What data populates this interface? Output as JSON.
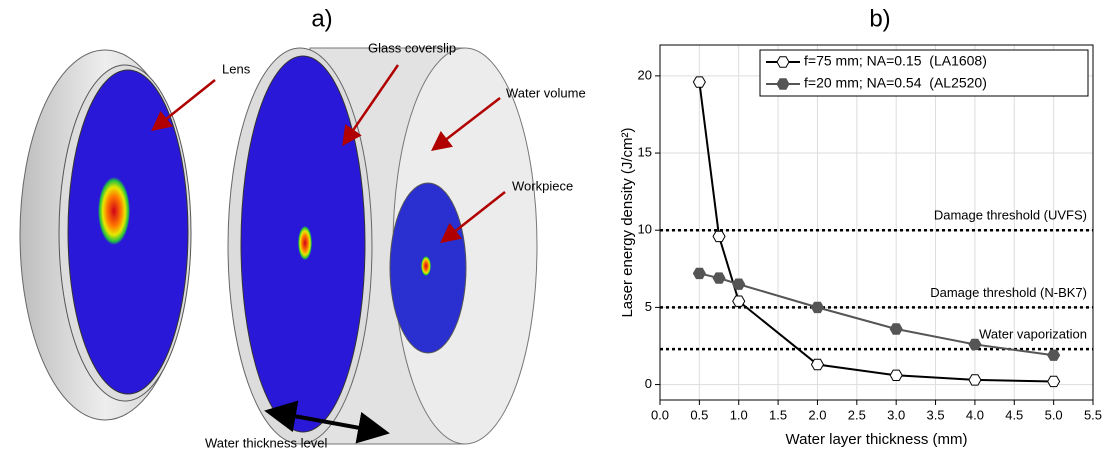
{
  "diagram": {
    "panel_label": "a)",
    "labels": [
      "Lens",
      "Glass coverslip",
      "Water volume",
      "Workpiece",
      "Water thickness level"
    ]
  },
  "chart_data": {
    "type": "line",
    "panel_label": "b)",
    "x_label": "Water layer thickness (mm)",
    "y_label": "Laser energy density (J/cm²)",
    "xlim": [
      0,
      5.5
    ],
    "ylim": [
      -1,
      22
    ],
    "xticks": [
      {
        "value": 0,
        "label": "0.0"
      },
      0.5,
      {
        "value": 1,
        "label": "1.0"
      },
      1.5,
      {
        "value": 2,
        "label": "2.0"
      },
      2.5,
      {
        "value": 3,
        "label": "3.0"
      },
      3.5,
      {
        "value": 4,
        "label": "4.0"
      },
      4.5,
      {
        "value": 5,
        "label": "5.0"
      },
      5.5
    ],
    "yticks": [
      0,
      5,
      10,
      15,
      20
    ],
    "grid": true,
    "legend": "upper right",
    "series": [
      {
        "name": "f=75 mm; NA=0.15  (LA1608)",
        "color": "#000000",
        "marker_fill": "#ffffff",
        "x": [
          0.5,
          0.75,
          1,
          2,
          3,
          4,
          5
        ],
        "values": [
          19.6,
          9.6,
          5.4,
          1.3,
          0.6,
          0.3,
          0.2
        ]
      },
      {
        "name": "f=20 mm; NA=0.54  (AL2520)",
        "color": "#555555",
        "marker_fill": "#555555",
        "x": [
          0.5,
          0.75,
          1,
          2,
          3,
          4,
          5
        ],
        "values": [
          7.2,
          6.9,
          6.5,
          5.0,
          3.6,
          2.6,
          1.9
        ]
      }
    ],
    "reference_lines": [
      {
        "value": 10,
        "label": "Damage threshold (UVFS)"
      },
      {
        "value": 5,
        "label": "Damage threshold (N-BK7)"
      },
      {
        "value": 2.3,
        "label": "Water vaporization"
      }
    ]
  }
}
